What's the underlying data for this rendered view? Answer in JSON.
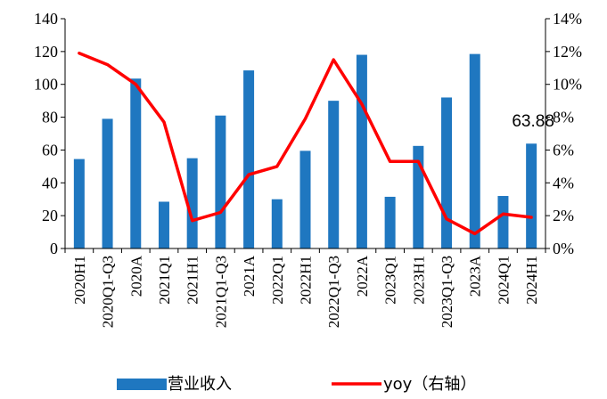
{
  "chart_data": {
    "type": "bar",
    "categories": [
      "2020H1",
      "2020Q1-Q3",
      "2020A",
      "2021Q1",
      "2021H1",
      "2021Q1-Q3",
      "2021A",
      "2022Q1",
      "2022H1",
      "2022Q1-Q3",
      "2022A",
      "2023Q1",
      "2023H1",
      "2023Q1-Q3",
      "2023A",
      "2024Q1",
      "2024H1"
    ],
    "series": [
      {
        "name": "营业收入",
        "type": "bar",
        "axis": "left",
        "color": "#1F77C0",
        "values": [
          54.5,
          79,
          103.5,
          28.5,
          55,
          81,
          108.5,
          30,
          59.5,
          90,
          118,
          31.5,
          62.5,
          92,
          118.5,
          32,
          63.88
        ]
      },
      {
        "name": "yoy（右轴）",
        "type": "line",
        "axis": "right",
        "color": "#FF0000",
        "values": [
          11.9,
          11.2,
          10.0,
          7.7,
          1.7,
          2.2,
          4.5,
          5.0,
          7.9,
          11.5,
          8.8,
          5.3,
          5.3,
          1.8,
          0.9,
          2.1,
          1.9
        ]
      }
    ],
    "ylim_left": [
      0,
      140
    ],
    "left_ticks": [
      "0",
      "20",
      "40",
      "60",
      "80",
      "100",
      "120",
      "140"
    ],
    "ylim_right": [
      0,
      14
    ],
    "right_ticks": [
      "0%",
      "2%",
      "4%",
      "6%",
      "8%",
      "10%",
      "12%",
      "14%"
    ],
    "annotation": {
      "category": "2024H1",
      "text": "63.88"
    },
    "legend_position": "bottom",
    "grid": false
  }
}
